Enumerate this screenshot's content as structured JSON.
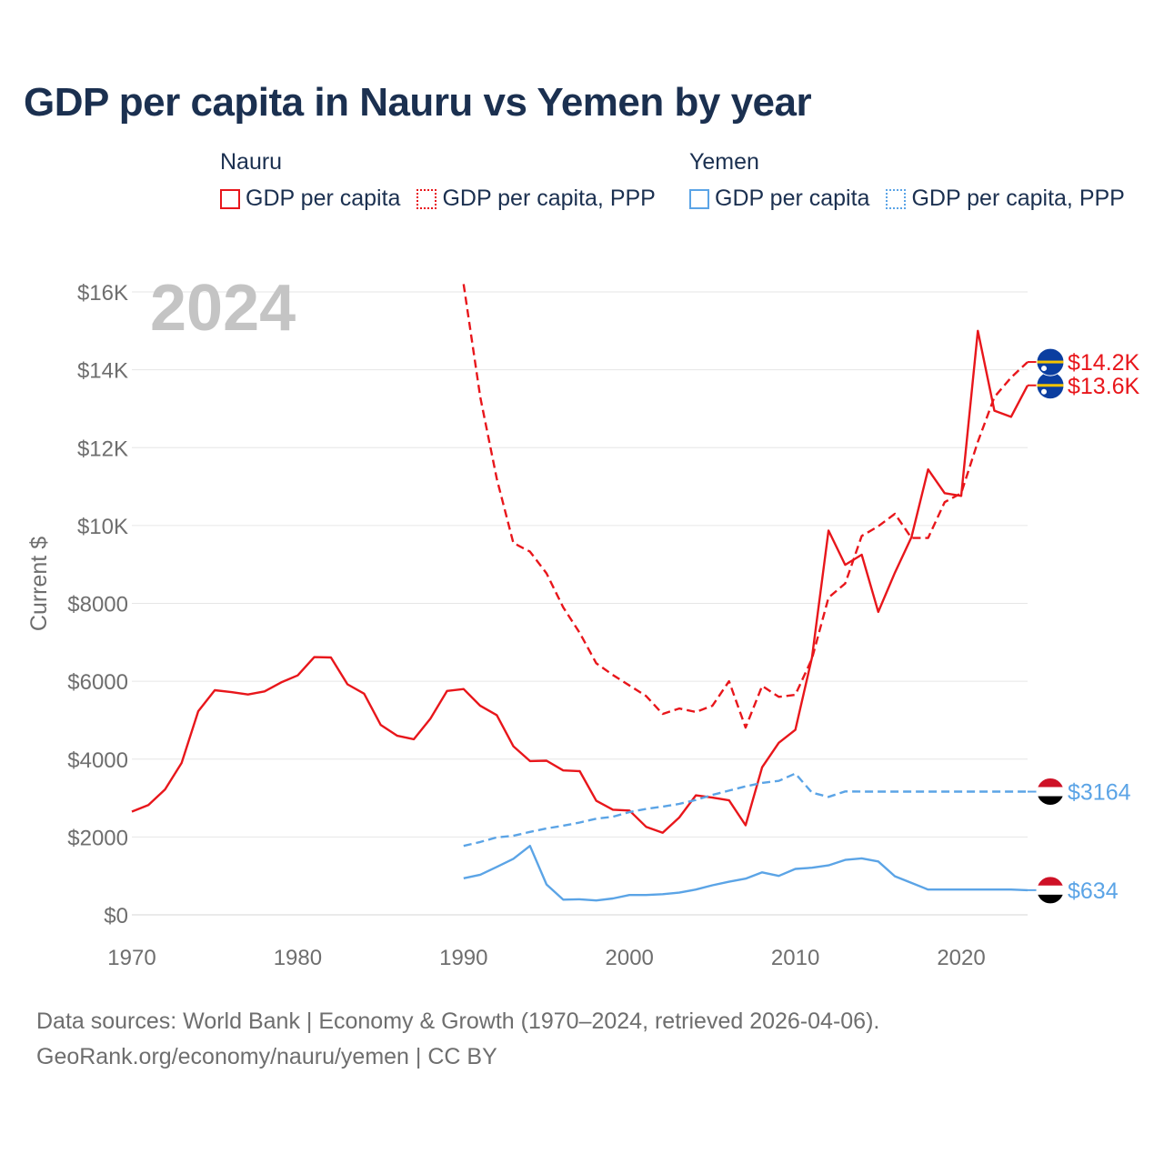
{
  "header": {
    "title": "GDP per capita in Nauru vs Yemen by year"
  },
  "legend": {
    "groups": [
      {
        "name": "Nauru",
        "color": "#e8161b",
        "items": [
          {
            "label": "GDP per capita",
            "style": "solid"
          },
          {
            "label": "GDP per capita, PPP",
            "style": "dotted"
          }
        ]
      },
      {
        "name": "Yemen",
        "color": "#5ba4e6",
        "items": [
          {
            "label": "GDP per capita",
            "style": "solid"
          },
          {
            "label": "GDP per capita, PPP",
            "style": "dotted"
          }
        ]
      }
    ]
  },
  "footer": {
    "line1": "Data sources: World Bank | Economy & Growth (1970–2024, retrieved 2026-04-06).",
    "line2": "GeoRank.org/economy/nauru/yemen | CC BY"
  },
  "chart_data": {
    "type": "line",
    "title": "GDP per capita in Nauru vs Yemen by year",
    "year_label": "2024",
    "ylabel": "Current $",
    "xlabel": "",
    "xlim": [
      1970,
      2024
    ],
    "ylim": [
      0,
      16000
    ],
    "xticks": [
      1970,
      1980,
      1990,
      2000,
      2010,
      2020
    ],
    "yticks": [
      0,
      2000,
      4000,
      6000,
      8000,
      10000,
      12000,
      14000,
      16000
    ],
    "ytick_labels": [
      "$0",
      "$2000",
      "$4000",
      "$6000",
      "$8000",
      "$10K",
      "$12K",
      "$14K",
      "$16K"
    ],
    "grid": true,
    "series": [
      {
        "name": "Nauru GDP per capita",
        "country": "Nauru",
        "color": "#e8161b",
        "dash": "solid",
        "end_label": "$13.6K",
        "x": [
          1970,
          1971,
          1972,
          1973,
          1974,
          1975,
          1976,
          1977,
          1978,
          1979,
          1980,
          1981,
          1982,
          1983,
          1984,
          1985,
          1986,
          1987,
          1988,
          1989,
          1990,
          1991,
          1992,
          1993,
          1994,
          1995,
          1996,
          1997,
          1998,
          1999,
          2000,
          2001,
          2002,
          2003,
          2004,
          2005,
          2006,
          2007,
          2008,
          2009,
          2010,
          2011,
          2012,
          2013,
          2014,
          2015,
          2016,
          2017,
          2018,
          2019,
          2020,
          2021,
          2022,
          2023,
          2024
        ],
        "values": [
          2650,
          2820,
          3220,
          3900,
          5230,
          5770,
          5720,
          5660,
          5740,
          5970,
          6150,
          6620,
          6610,
          5920,
          5680,
          4880,
          4600,
          4510,
          5040,
          5750,
          5800,
          5370,
          5130,
          4330,
          3950,
          3960,
          3710,
          3690,
          2930,
          2700,
          2680,
          2260,
          2110,
          2500,
          3070,
          3010,
          2940,
          2300,
          3790,
          4420,
          4750,
          6610,
          9870,
          8990,
          9250,
          7780,
          8790,
          9700,
          11440,
          10830,
          10760,
          15000,
          12950,
          12790,
          13600
        ]
      },
      {
        "name": "Nauru GDP per capita, PPP",
        "country": "Nauru",
        "color": "#e8161b",
        "dash": "dashed",
        "end_label": "$14.2K",
        "x": [
          1990,
          1991,
          1992,
          1993,
          1994,
          1995,
          1996,
          1997,
          1998,
          1999,
          2000,
          2001,
          2002,
          2003,
          2004,
          2005,
          2006,
          2007,
          2008,
          2009,
          2010,
          2011,
          2012,
          2013,
          2014,
          2015,
          2016,
          2017,
          2018,
          2019,
          2020,
          2021,
          2022,
          2023,
          2024
        ],
        "values": [
          16200,
          13300,
          11200,
          9550,
          9330,
          8770,
          7900,
          7240,
          6460,
          6160,
          5890,
          5620,
          5160,
          5300,
          5210,
          5370,
          6000,
          4810,
          5880,
          5600,
          5650,
          6580,
          8150,
          8510,
          9730,
          9980,
          10300,
          9680,
          9680,
          10600,
          10830,
          12150,
          13300,
          13800,
          14200
        ]
      },
      {
        "name": "Yemen GDP per capita",
        "country": "Yemen",
        "color": "#5ba4e6",
        "dash": "solid",
        "end_label": "$634",
        "x": [
          1990,
          1991,
          1992,
          1993,
          1994,
          1995,
          1996,
          1997,
          1998,
          1999,
          2000,
          2001,
          2002,
          2003,
          2004,
          2005,
          2006,
          2007,
          2008,
          2009,
          2010,
          2011,
          2012,
          2013,
          2014,
          2015,
          2016,
          2017,
          2018,
          2019,
          2020,
          2021,
          2022,
          2023,
          2024
        ],
        "values": [
          940,
          1030,
          1230,
          1440,
          1770,
          780,
          390,
          400,
          370,
          420,
          510,
          510,
          530,
          570,
          650,
          760,
          850,
          930,
          1090,
          1000,
          1180,
          1210,
          1270,
          1410,
          1450,
          1370,
          990,
          820,
          650,
          650,
          650,
          650,
          650,
          650,
          634
        ]
      },
      {
        "name": "Yemen GDP per capita, PPP",
        "country": "Yemen",
        "color": "#5ba4e6",
        "dash": "dashed",
        "end_label": "$3164",
        "x": [
          1990,
          1991,
          1992,
          1993,
          1994,
          1995,
          1996,
          1997,
          1998,
          1999,
          2000,
          2001,
          2002,
          2003,
          2004,
          2005,
          2006,
          2007,
          2008,
          2009,
          2010,
          2011,
          2012,
          2013,
          2014,
          2015,
          2016,
          2017,
          2018,
          2019,
          2020,
          2021,
          2022,
          2023,
          2024
        ],
        "values": [
          1770,
          1870,
          1990,
          2030,
          2130,
          2220,
          2290,
          2370,
          2470,
          2520,
          2640,
          2720,
          2780,
          2850,
          2950,
          3080,
          3190,
          3300,
          3390,
          3440,
          3630,
          3140,
          3030,
          3170,
          3164,
          3164,
          3164,
          3164,
          3164,
          3164,
          3164,
          3164,
          3164,
          3164,
          3164
        ]
      }
    ]
  }
}
